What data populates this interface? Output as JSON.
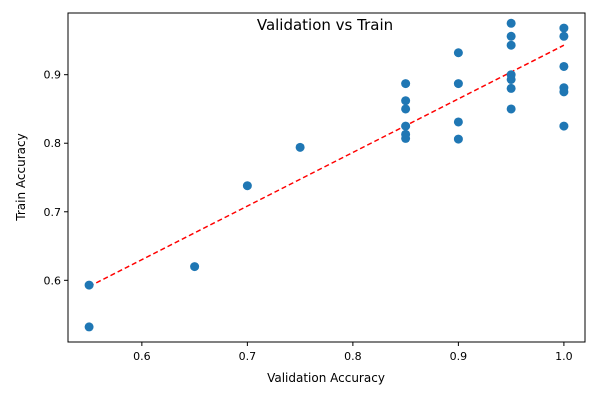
{
  "chart_data": {
    "type": "scatter",
    "title": "Validation vs Train",
    "xlabel": "Validation Accuracy",
    "ylabel": "Train Accuracy",
    "xlim": [
      0.53,
      1.02
    ],
    "ylim": [
      0.51,
      0.99
    ],
    "xticks": [
      0.6,
      0.7,
      0.8,
      0.9,
      1.0
    ],
    "xtick_labels": [
      "0.6",
      "0.7",
      "0.8",
      "0.9",
      "1.0"
    ],
    "yticks": [
      0.6,
      0.7,
      0.8,
      0.9
    ],
    "ytick_labels": [
      "0.6",
      "0.7",
      "0.8",
      "0.9"
    ],
    "grid": false,
    "legend": "none",
    "point_color": "#1f77b4",
    "trend_color": "#ff0000",
    "points": [
      {
        "x": 0.55,
        "y": 0.593
      },
      {
        "x": 0.55,
        "y": 0.532
      },
      {
        "x": 0.65,
        "y": 0.62
      },
      {
        "x": 0.7,
        "y": 0.738
      },
      {
        "x": 0.75,
        "y": 0.794
      },
      {
        "x": 0.85,
        "y": 0.887
      },
      {
        "x": 0.85,
        "y": 0.862
      },
      {
        "x": 0.85,
        "y": 0.85
      },
      {
        "x": 0.85,
        "y": 0.825
      },
      {
        "x": 0.85,
        "y": 0.813
      },
      {
        "x": 0.85,
        "y": 0.807
      },
      {
        "x": 0.9,
        "y": 0.932
      },
      {
        "x": 0.9,
        "y": 0.887
      },
      {
        "x": 0.9,
        "y": 0.831
      },
      {
        "x": 0.9,
        "y": 0.806
      },
      {
        "x": 0.95,
        "y": 0.975
      },
      {
        "x": 0.95,
        "y": 0.956
      },
      {
        "x": 0.95,
        "y": 0.943
      },
      {
        "x": 0.95,
        "y": 0.9
      },
      {
        "x": 0.95,
        "y": 0.893
      },
      {
        "x": 0.95,
        "y": 0.88
      },
      {
        "x": 0.95,
        "y": 0.85
      },
      {
        "x": 1.0,
        "y": 0.968
      },
      {
        "x": 1.0,
        "y": 0.956
      },
      {
        "x": 1.0,
        "y": 0.912
      },
      {
        "x": 1.0,
        "y": 0.881
      },
      {
        "x": 1.0,
        "y": 0.875
      },
      {
        "x": 1.0,
        "y": 0.825
      }
    ],
    "trendline": {
      "x": [
        0.55,
        1.0
      ],
      "y": [
        0.591,
        0.943
      ]
    }
  }
}
